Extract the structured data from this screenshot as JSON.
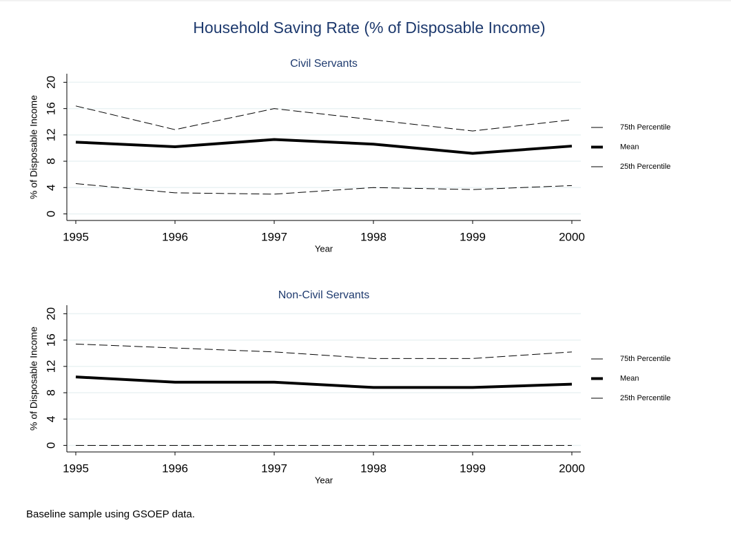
{
  "title": "Household Saving Rate (% of Disposable Income)",
  "note": "Baseline sample using GSOEP data.",
  "chart_data": [
    {
      "type": "line",
      "title": "Civil Servants",
      "xlabel": "Year",
      "ylabel": "% of Disposable Income",
      "x": [
        1995,
        1996,
        1997,
        1998,
        1999,
        2000
      ],
      "xlim": [
        1995,
        2000
      ],
      "xticks": [
        1995,
        1996,
        1997,
        1998,
        1999,
        2000
      ],
      "ylim": [
        -1,
        21.3
      ],
      "yticks": [
        0,
        4,
        8,
        12,
        16,
        20
      ],
      "grid": true,
      "legend": "right",
      "series": [
        {
          "name": "75th Percentile",
          "color": "#000000",
          "dashed": true,
          "line_width": 1,
          "values": [
            16.4,
            12.8,
            16.0,
            14.3,
            12.6,
            14.3
          ]
        },
        {
          "name": "Mean",
          "color": "#000000",
          "dashed": false,
          "line_width": 4,
          "values": [
            10.9,
            10.2,
            11.3,
            10.6,
            9.2,
            10.3
          ]
        },
        {
          "name": "25th Percentile",
          "color": "#000000",
          "dashed": true,
          "line_width": 1,
          "values": [
            4.6,
            3.2,
            3.0,
            4.0,
            3.7,
            4.3
          ]
        }
      ]
    },
    {
      "type": "line",
      "title": "Non-Civil Servants",
      "xlabel": "Year",
      "ylabel": "% of Disposable Income",
      "x": [
        1995,
        1996,
        1997,
        1998,
        1999,
        2000
      ],
      "xlim": [
        1995,
        2000
      ],
      "xticks": [
        1995,
        1996,
        1997,
        1998,
        1999,
        2000
      ],
      "ylim": [
        -1,
        21.3
      ],
      "yticks": [
        0,
        4,
        8,
        12,
        16,
        20
      ],
      "grid": true,
      "legend": "right",
      "series": [
        {
          "name": "75th Percentile",
          "color": "#000000",
          "dashed": true,
          "line_width": 1,
          "values": [
            15.4,
            14.8,
            14.2,
            13.2,
            13.2,
            14.2
          ]
        },
        {
          "name": "Mean",
          "color": "#000000",
          "dashed": false,
          "line_width": 4,
          "values": [
            10.4,
            9.6,
            9.6,
            8.8,
            8.8,
            9.3
          ]
        },
        {
          "name": "25th Percentile",
          "color": "#000000",
          "dashed": true,
          "line_width": 1,
          "values": [
            0,
            0,
            0,
            0,
            0,
            0
          ]
        }
      ]
    }
  ]
}
